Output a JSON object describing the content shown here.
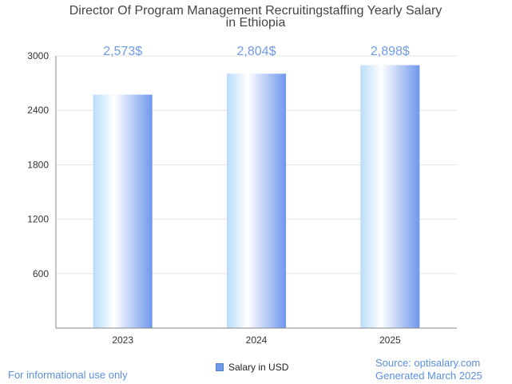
{
  "chart_data": {
    "type": "bar",
    "title_lines": [
      "Director Of Program Management Recruitingstaffing Yearly Salary",
      "in Ethiopia"
    ],
    "categories": [
      "2023",
      "2024",
      "2025"
    ],
    "series": [
      {
        "name": "Salary in USD",
        "values": [
          2573,
          2804,
          2898
        ]
      }
    ],
    "data_labels": [
      "2,573$",
      "2,804$",
      "2,898$"
    ],
    "y_ticks": [
      600,
      1200,
      1800,
      2400,
      3000
    ],
    "ylim": [
      0,
      3000
    ],
    "grid": true,
    "legend_position": "bottom-center"
  },
  "footer": {
    "left": "For informational use only",
    "source": "Source: optisalary.com",
    "generated": "Generated March 2025"
  },
  "colors": {
    "bar_light": "#ffffff",
    "bar_mid": "#b9dcfb",
    "bar_dark": "#6f97ec",
    "label": "#6f9be6"
  }
}
